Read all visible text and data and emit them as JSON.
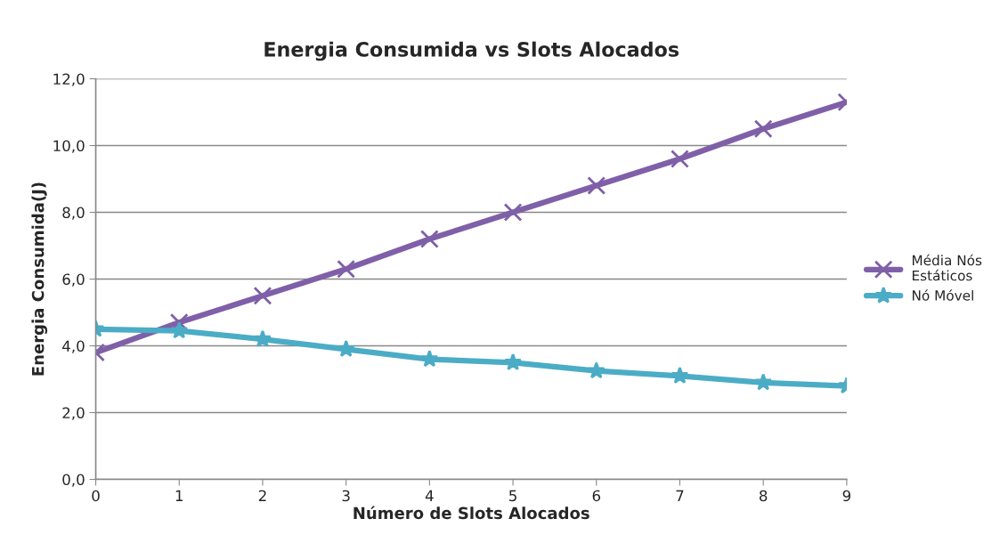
{
  "chart_data": {
    "type": "line",
    "title": "Energia Consumida vs Slots Alocados",
    "xlabel": "Número de Slots Alocados",
    "ylabel": "Energia Consumida(J)",
    "x": [
      0,
      1,
      2,
      3,
      4,
      5,
      6,
      7,
      8,
      9
    ],
    "series": [
      {
        "name": "Média Nós Estáticos",
        "color": "#7f60a8",
        "marker": "cross",
        "values": [
          3.8,
          4.7,
          5.5,
          6.3,
          7.2,
          8.0,
          8.8,
          9.6,
          10.5,
          11.3
        ]
      },
      {
        "name": "Nó Móvel",
        "color": "#4bacc6",
        "marker": "star",
        "values": [
          4.5,
          4.45,
          4.2,
          3.9,
          3.6,
          3.5,
          3.25,
          3.1,
          2.9,
          2.8
        ]
      }
    ],
    "xlim": [
      0,
      9
    ],
    "xticks": [
      0,
      1,
      2,
      3,
      4,
      5,
      6,
      7,
      8,
      9
    ],
    "ylim": [
      0,
      12
    ],
    "yticks": [
      {
        "value": 0,
        "label": "0,0"
      },
      {
        "value": 2,
        "label": "2,0"
      },
      {
        "value": 4,
        "label": "4,0"
      },
      {
        "value": 6,
        "label": "6,0"
      },
      {
        "value": 8,
        "label": "8,0"
      },
      {
        "value": 10,
        "label": "10,0"
      },
      {
        "value": 12,
        "label": "12,0"
      }
    ],
    "grid": "y",
    "legend": "right",
    "line_style": "solid"
  }
}
